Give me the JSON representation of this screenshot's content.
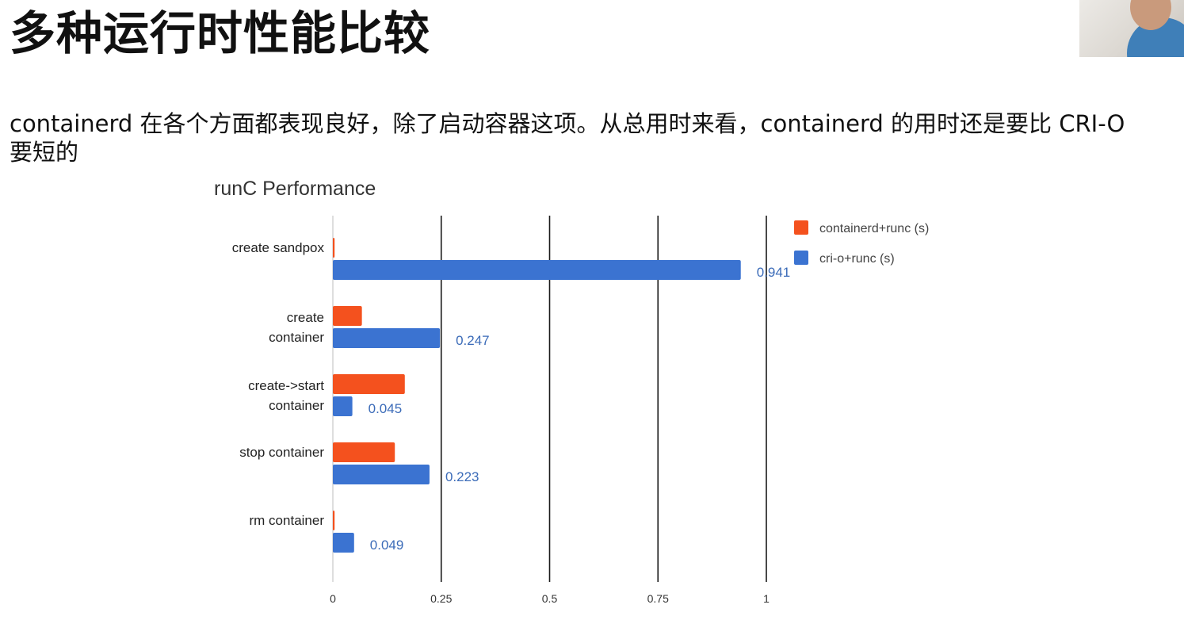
{
  "slide": {
    "title": "多种运行时性能比较",
    "body": "containerd 在各个方面都表现良好，除了启动容器这项。从总用时来看，containerd 的用时还是要比 CRI-O 要短的"
  },
  "chart_data": {
    "type": "bar",
    "orientation": "horizontal",
    "title": "runC Performance",
    "xlabel": "",
    "ylabel": "",
    "xlim": [
      0,
      1
    ],
    "ticks": [
      0,
      0.25,
      0.5,
      0.75,
      1
    ],
    "tick_labels": [
      "0",
      "0.25",
      "0.5",
      "0.75",
      "1"
    ],
    "grid": true,
    "legend_position": "top-right",
    "categories": [
      [
        "create sandpox"
      ],
      [
        "create",
        "container"
      ],
      [
        "create->start",
        "container"
      ],
      [
        "stop container"
      ],
      [
        "rm container"
      ]
    ],
    "series": [
      {
        "name": "containerd+runc (s)",
        "color": "#f4511e",
        "values": [
          0.004,
          0.067,
          0.166,
          0.143,
          0.004
        ],
        "data_labels": [
          "",
          "",
          "",
          "",
          ""
        ]
      },
      {
        "name": "cri-o+runc (s)",
        "color": "#3b73d1",
        "values": [
          0.941,
          0.247,
          0.045,
          0.223,
          0.049
        ],
        "data_labels": [
          "0.941",
          "0.247",
          "0.045",
          "0.223",
          "0.049"
        ]
      }
    ]
  }
}
